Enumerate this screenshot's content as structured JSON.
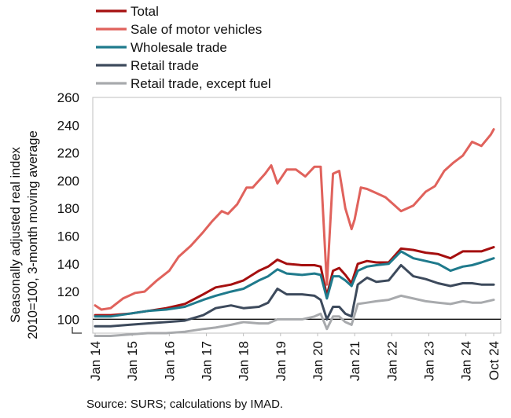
{
  "chart_data": {
    "type": "line",
    "xlabel": "",
    "ylabel": "Seasonally adjusted real index\n2010=100, 3-month moving average",
    "ylabel_lines": [
      "Seasonally adjusted real index",
      "2010=100, 3-month moving average"
    ],
    "ylim": [
      90,
      260
    ],
    "yticks": [
      100,
      120,
      140,
      160,
      180,
      200,
      220,
      240,
      260
    ],
    "xlim": [
      "2014-01",
      "2024-10"
    ],
    "x_tick_labels": [
      {
        "date": "2014-01",
        "label": "Jan 14"
      },
      {
        "date": "2015-01",
        "label": "Jan 15"
      },
      {
        "date": "2016-01",
        "label": "Jan 16"
      },
      {
        "date": "2017-01",
        "label": "Jan 17"
      },
      {
        "date": "2018-01",
        "label": "Jan 18"
      },
      {
        "date": "2019-01",
        "label": "Jan 19"
      },
      {
        "date": "2020-01",
        "label": "Jan 20"
      },
      {
        "date": "2021-01",
        "label": "Jan 21"
      },
      {
        "date": "2022-01",
        "label": "Jan 22"
      },
      {
        "date": "2023-01",
        "label": "Jan 23"
      },
      {
        "date": "2024-01",
        "label": "Jan 24"
      },
      {
        "date": "2024-10",
        "label": "Oct 24"
      }
    ],
    "reference_line": 100,
    "axis_break": true,
    "grid": false,
    "legend_position": "top-left",
    "source": "Source: SURS; calculations by IMAD.",
    "series": [
      {
        "name": "Total",
        "color": "#a50f0f",
        "points": [
          [
            "2014-01",
            103
          ],
          [
            "2014-06",
            103
          ],
          [
            "2014-12",
            104
          ],
          [
            "2015-06",
            106
          ],
          [
            "2015-12",
            108
          ],
          [
            "2016-06",
            111
          ],
          [
            "2016-12",
            118
          ],
          [
            "2017-04",
            123
          ],
          [
            "2017-09",
            125
          ],
          [
            "2018-01",
            128
          ],
          [
            "2018-06",
            135
          ],
          [
            "2018-09",
            138
          ],
          [
            "2018-12",
            143
          ],
          [
            "2019-03",
            140
          ],
          [
            "2019-08",
            139
          ],
          [
            "2019-12",
            139
          ],
          [
            "2020-02",
            138
          ],
          [
            "2020-04",
            117
          ],
          [
            "2020-06",
            135
          ],
          [
            "2020-08",
            137
          ],
          [
            "2020-10",
            132
          ],
          [
            "2020-12",
            126
          ],
          [
            "2021-02",
            140
          ],
          [
            "2021-05",
            142
          ],
          [
            "2021-08",
            141
          ],
          [
            "2021-12",
            141
          ],
          [
            "2022-04",
            151
          ],
          [
            "2022-08",
            150
          ],
          [
            "2022-12",
            148
          ],
          [
            "2023-04",
            147
          ],
          [
            "2023-08",
            144
          ],
          [
            "2023-12",
            149
          ],
          [
            "2024-03",
            149
          ],
          [
            "2024-06",
            149
          ],
          [
            "2024-10",
            152
          ]
        ]
      },
      {
        "name": "Sale of motor vehicles",
        "color": "#e0625c",
        "points": [
          [
            "2014-01",
            110
          ],
          [
            "2014-03",
            107
          ],
          [
            "2014-06",
            108
          ],
          [
            "2014-10",
            115
          ],
          [
            "2015-02",
            119
          ],
          [
            "2015-05",
            120
          ],
          [
            "2015-09",
            128
          ],
          [
            "2016-01",
            135
          ],
          [
            "2016-04",
            145
          ],
          [
            "2016-08",
            153
          ],
          [
            "2016-12",
            163
          ],
          [
            "2017-03",
            171
          ],
          [
            "2017-06",
            178
          ],
          [
            "2017-08",
            176
          ],
          [
            "2017-11",
            183
          ],
          [
            "2018-02",
            195
          ],
          [
            "2018-04",
            195
          ],
          [
            "2018-08",
            205
          ],
          [
            "2018-10",
            211
          ],
          [
            "2018-12",
            198
          ],
          [
            "2019-03",
            208
          ],
          [
            "2019-06",
            208
          ],
          [
            "2019-09",
            203
          ],
          [
            "2019-12",
            210
          ],
          [
            "2020-02",
            210
          ],
          [
            "2020-04",
            125
          ],
          [
            "2020-06",
            205
          ],
          [
            "2020-08",
            207
          ],
          [
            "2020-10",
            180
          ],
          [
            "2020-12",
            165
          ],
          [
            "2021-01",
            172
          ],
          [
            "2021-03",
            195
          ],
          [
            "2021-05",
            194
          ],
          [
            "2021-08",
            191
          ],
          [
            "2021-11",
            188
          ],
          [
            "2022-02",
            182
          ],
          [
            "2022-04",
            178
          ],
          [
            "2022-08",
            182
          ],
          [
            "2022-12",
            192
          ],
          [
            "2023-03",
            196
          ],
          [
            "2023-06",
            207
          ],
          [
            "2023-09",
            213
          ],
          [
            "2023-12",
            218
          ],
          [
            "2024-03",
            228
          ],
          [
            "2024-06",
            225
          ],
          [
            "2024-09",
            233
          ],
          [
            "2024-10",
            237
          ]
        ]
      },
      {
        "name": "Wholesale trade",
        "color": "#1f7a8c",
        "points": [
          [
            "2014-01",
            102
          ],
          [
            "2014-06",
            102
          ],
          [
            "2014-12",
            104
          ],
          [
            "2015-06",
            106
          ],
          [
            "2015-12",
            107
          ],
          [
            "2016-06",
            109
          ],
          [
            "2016-12",
            114
          ],
          [
            "2017-04",
            117
          ],
          [
            "2017-09",
            120
          ],
          [
            "2018-01",
            122
          ],
          [
            "2018-06",
            128
          ],
          [
            "2018-09",
            131
          ],
          [
            "2018-12",
            136
          ],
          [
            "2019-03",
            133
          ],
          [
            "2019-08",
            132
          ],
          [
            "2019-12",
            133
          ],
          [
            "2020-02",
            132
          ],
          [
            "2020-04",
            115
          ],
          [
            "2020-06",
            131
          ],
          [
            "2020-08",
            131
          ],
          [
            "2020-10",
            128
          ],
          [
            "2020-12",
            124
          ],
          [
            "2021-02",
            135
          ],
          [
            "2021-05",
            138
          ],
          [
            "2021-08",
            139
          ],
          [
            "2021-12",
            140
          ],
          [
            "2022-04",
            149
          ],
          [
            "2022-08",
            144
          ],
          [
            "2022-12",
            142
          ],
          [
            "2023-04",
            140
          ],
          [
            "2023-08",
            135
          ],
          [
            "2023-12",
            138
          ],
          [
            "2024-03",
            139
          ],
          [
            "2024-06",
            141
          ],
          [
            "2024-10",
            144
          ]
        ]
      },
      {
        "name": "Retail trade",
        "color": "#3d4a5c",
        "points": [
          [
            "2014-01",
            95
          ],
          [
            "2014-06",
            95
          ],
          [
            "2014-12",
            96
          ],
          [
            "2015-06",
            97
          ],
          [
            "2015-12",
            98
          ],
          [
            "2016-06",
            99
          ],
          [
            "2016-12",
            103
          ],
          [
            "2017-04",
            108
          ],
          [
            "2017-09",
            110
          ],
          [
            "2018-01",
            108
          ],
          [
            "2018-06",
            109
          ],
          [
            "2018-09",
            112
          ],
          [
            "2018-12",
            122
          ],
          [
            "2019-03",
            118
          ],
          [
            "2019-08",
            118
          ],
          [
            "2019-12",
            117
          ],
          [
            "2020-02",
            114
          ],
          [
            "2020-04",
            100
          ],
          [
            "2020-06",
            109
          ],
          [
            "2020-08",
            109
          ],
          [
            "2020-10",
            104
          ],
          [
            "2020-12",
            102
          ],
          [
            "2021-02",
            125
          ],
          [
            "2021-05",
            130
          ],
          [
            "2021-08",
            127
          ],
          [
            "2021-12",
            128
          ],
          [
            "2022-04",
            139
          ],
          [
            "2022-08",
            131
          ],
          [
            "2022-12",
            129
          ],
          [
            "2023-04",
            126
          ],
          [
            "2023-08",
            124
          ],
          [
            "2023-12",
            126
          ],
          [
            "2024-03",
            126
          ],
          [
            "2024-06",
            125
          ],
          [
            "2024-10",
            125
          ]
        ]
      },
      {
        "name": "Retail trade, except fuel",
        "color": "#a8aaad",
        "points": [
          [
            "2014-01",
            88
          ],
          [
            "2014-06",
            88
          ],
          [
            "2014-12",
            89
          ],
          [
            "2015-06",
            90
          ],
          [
            "2015-12",
            90
          ],
          [
            "2016-06",
            91
          ],
          [
            "2016-12",
            93
          ],
          [
            "2017-04",
            94
          ],
          [
            "2017-09",
            96
          ],
          [
            "2018-01",
            98
          ],
          [
            "2018-06",
            97
          ],
          [
            "2018-09",
            97
          ],
          [
            "2018-12",
            100
          ],
          [
            "2019-03",
            100
          ],
          [
            "2019-08",
            100
          ],
          [
            "2019-12",
            102
          ],
          [
            "2020-02",
            104
          ],
          [
            "2020-04",
            93
          ],
          [
            "2020-06",
            102
          ],
          [
            "2020-08",
            102
          ],
          [
            "2020-10",
            98
          ],
          [
            "2020-12",
            96
          ],
          [
            "2021-02",
            111
          ],
          [
            "2021-05",
            112
          ],
          [
            "2021-08",
            113
          ],
          [
            "2021-12",
            114
          ],
          [
            "2022-04",
            117
          ],
          [
            "2022-08",
            115
          ],
          [
            "2022-12",
            113
          ],
          [
            "2023-04",
            112
          ],
          [
            "2023-08",
            111
          ],
          [
            "2023-12",
            113
          ],
          [
            "2024-03",
            112
          ],
          [
            "2024-06",
            112
          ],
          [
            "2024-10",
            114
          ]
        ]
      }
    ]
  }
}
